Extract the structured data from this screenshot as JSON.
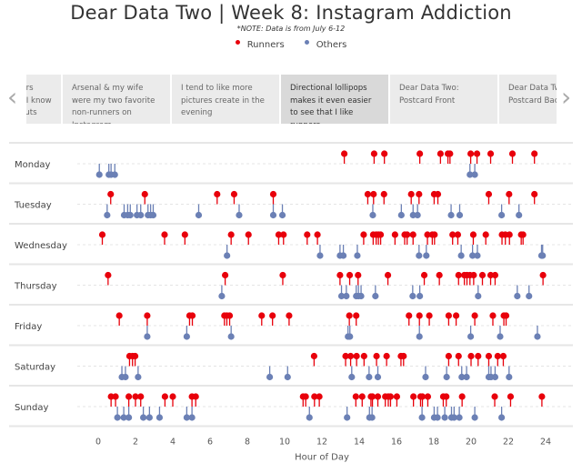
{
  "header": {
    "title": "Dear Data Two  |  Week 8: Instagram Addiction",
    "note": "*NOTE: Data is from July 6-12"
  },
  "legend": [
    {
      "label": "Runners",
      "color": "#e8000b"
    },
    {
      "label": "Others",
      "color": "#6b80b5"
    }
  ],
  "carousel": {
    "prev_icon": "chevron-left-icon",
    "next_icon": "chevron-right-icon",
    "cards": [
      {
        "text": "Runners vs others ratio... Because I know Jeffrey likes donuts",
        "visible": "hers ratio... e I know Jeffrey onuts",
        "active": false
      },
      {
        "text": "Arsenal & my wife were my two favorite non-runners on Instagram",
        "active": false
      },
      {
        "text": "I tend to like more pictures create in the evening",
        "active": false
      },
      {
        "text": "Directional lollipops makes it even easier to see that I like runners",
        "active": true
      },
      {
        "text": "Dear Data Two: Postcard Front",
        "active": false
      },
      {
        "text": "Dear Data Two: Postcard Back",
        "active": false
      }
    ]
  },
  "chart_data": {
    "type": "scatter",
    "xlabel": "Hour of Day",
    "xlim": [
      0,
      24
    ],
    "xticks": [
      0,
      2,
      4,
      6,
      8,
      10,
      12,
      14,
      16,
      18,
      20,
      22,
      24
    ],
    "colors": {
      "runners": "#e8000b",
      "others": "#6b80b5"
    },
    "days": [
      {
        "day": "Monday",
        "runners": [
          13.2,
          14.8,
          15.35,
          17.25,
          18.36,
          18.76,
          18.87,
          19.98,
          20.32,
          21.05,
          22.22,
          23.4
        ],
        "others": [
          0.06,
          0.57,
          0.69,
          0.89,
          19.94,
          20.2
        ]
      },
      {
        "day": "Tuesday",
        "runners": [
          0.67,
          2.5,
          6.38,
          7.29,
          9.39,
          14.46,
          14.77,
          15.33,
          16.79,
          17.21,
          18.02,
          18.22,
          20.95,
          22.04,
          23.4
        ],
        "others": [
          0.48,
          1.39,
          1.58,
          1.72,
          2.08,
          2.28,
          2.67,
          2.81,
          2.95,
          5.39,
          7.56,
          9.39,
          9.88,
          14.73,
          16.26,
          16.89,
          17.13,
          18.93,
          19.39,
          21.64,
          22.57
        ]
      },
      {
        "day": "Wednesday",
        "runners": [
          0.22,
          3.56,
          4.65,
          7.13,
          8.06,
          9.68,
          9.94,
          11.21,
          11.76,
          14.24,
          14.75,
          14.91,
          15.03,
          15.15,
          15.92,
          16.44,
          16.57,
          16.89,
          17.66,
          17.92,
          18.04,
          19.01,
          19.29,
          20.12,
          20.79,
          21.66,
          21.84,
          22.06,
          22.69,
          22.79
        ],
        "others": [
          6.91,
          11.9,
          12.97,
          13.15,
          13.9,
          17.21,
          17.6,
          19.47,
          20.08,
          20.34,
          23.78,
          23.84
        ]
      },
      {
        "day": "Thursday",
        "runners": [
          0.53,
          6.81,
          9.9,
          12.97,
          13.49,
          13.94,
          15.54,
          17.49,
          18.3,
          19.33,
          19.64,
          19.78,
          19.94,
          20.14,
          20.61,
          21.05,
          21.29,
          23.86
        ],
        "others": [
          6.63,
          13.05,
          13.31,
          13.84,
          13.96,
          14.1,
          14.87,
          16.87,
          17.25,
          20.38,
          22.48,
          23.11
        ]
      },
      {
        "day": "Friday",
        "runners": [
          1.13,
          2.63,
          4.9,
          5.05,
          6.77,
          6.9,
          7.05,
          8.77,
          9.35,
          10.24,
          13.47,
          13.84,
          16.67,
          17.23,
          17.76,
          18.8,
          19.2,
          20.2,
          21.17,
          21.76,
          21.88
        ],
        "others": [
          2.63,
          4.75,
          7.13,
          13.4,
          13.5,
          17.23,
          19.98,
          21.56,
          23.56
        ]
      },
      {
        "day": "Saturday",
        "runners": [
          1.68,
          1.84,
          1.98,
          11.58,
          13.27,
          13.54,
          13.86,
          14.26,
          14.93,
          15.47,
          16.24,
          16.38,
          18.8,
          19.33,
          20.0,
          20.38,
          20.95,
          21.43,
          21.73
        ],
        "others": [
          1.27,
          1.46,
          2.14,
          9.2,
          10.16,
          13.6,
          14.53,
          15.0,
          17.56,
          18.69,
          19.5,
          19.76,
          20.95,
          21.07,
          21.29,
          22.04
        ]
      },
      {
        "day": "Sunday",
        "runners": [
          0.69,
          0.93,
          1.64,
          2.0,
          2.28,
          3.58,
          4.0,
          5.03,
          5.23,
          10.99,
          11.13,
          11.6,
          11.86,
          13.82,
          14.16,
          14.63,
          14.71,
          15.0,
          15.4,
          15.56,
          15.68,
          16.02,
          16.91,
          17.29,
          17.39,
          17.68,
          18.51,
          18.67,
          19.52,
          21.27,
          22.12,
          23.8
        ],
        "others": [
          1.03,
          1.37,
          1.64,
          2.42,
          2.75,
          3.29,
          4.75,
          5.03,
          11.33,
          13.35,
          14.55,
          14.69,
          17.37,
          18.02,
          18.2,
          18.59,
          18.95,
          19.09,
          19.37,
          20.2,
          21.64
        ]
      }
    ]
  }
}
